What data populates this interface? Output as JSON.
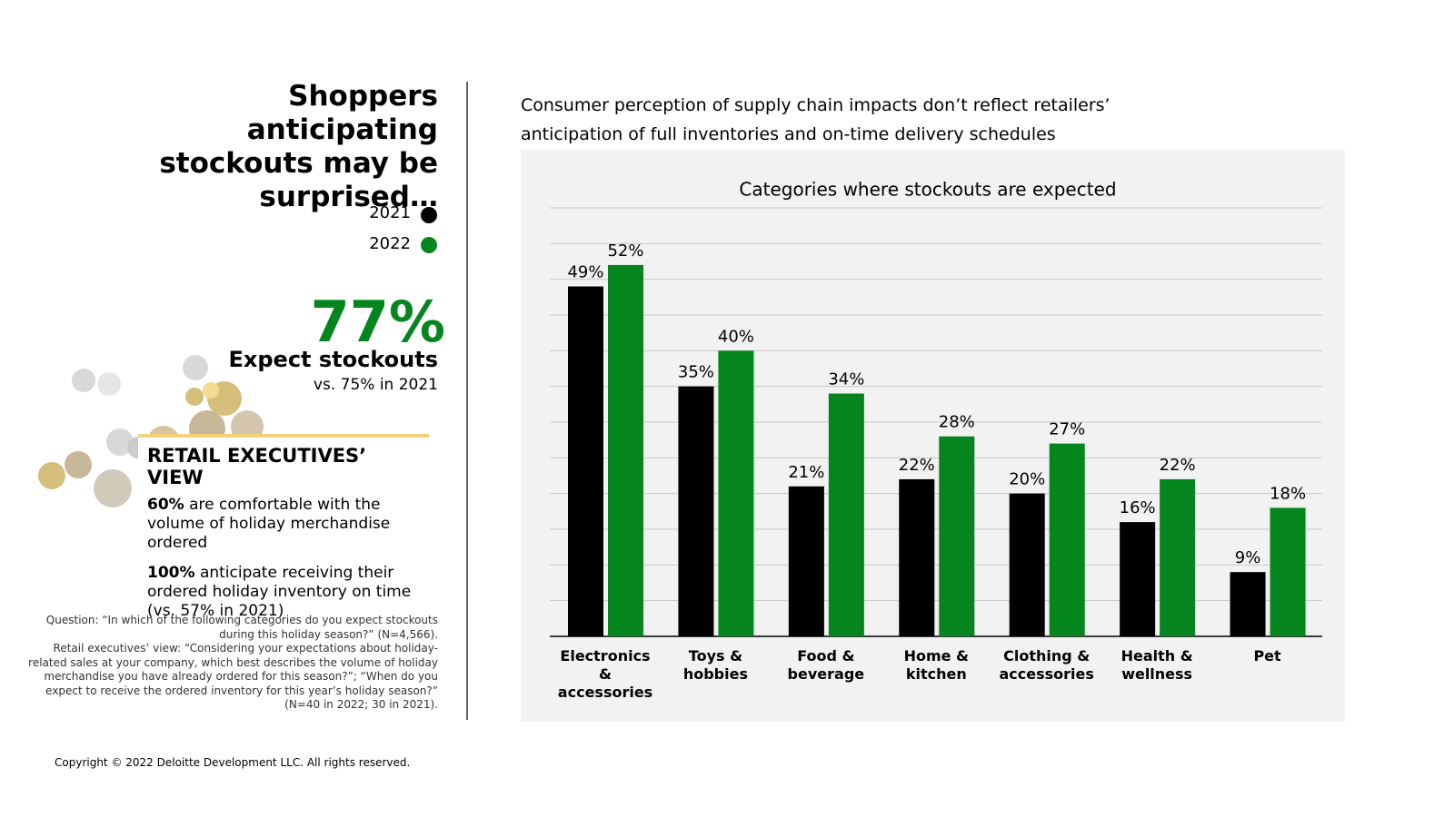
{
  "headline": "Shoppers anticipating stockouts may be surprised…",
  "stat": {
    "figure": "77%",
    "label": "Expect stockouts",
    "comparison": "vs. 75% in 2021"
  },
  "executives": {
    "title": "RETAIL EXECUTIVES’ VIEW",
    "points": [
      {
        "lead": "60%",
        "text": "are comfortable with the volume of holiday merchandise ordered"
      },
      {
        "lead": "100%",
        "text": "anticipate receiving their ordered holiday inventory on time (vs. 57% in 2021)"
      }
    ]
  },
  "notes": [
    "Question: “In which of the following categories do you expect stockouts during this holiday season?” (N=4,566).",
    "Retail executives’ view: “Considering your expectations about holiday-related sales at your company, which best describes the volume of holiday merchandise you have already ordered for this season?”; “When do you expect to receive the ordered inventory for this year’s holiday season?” (N=40 in 2022; 30 in 2021)."
  ],
  "copyright": "Copyright © 2022 Deloitte Development LLC. All rights reserved.",
  "chart_data": {
    "type": "bar",
    "subtitle": "Consumer perception of supply chain impacts don’t reflect retailers’ anticipation of full inventories and on-time delivery schedules",
    "title": "Categories where stockouts are expected",
    "categories": [
      "Electronics & accessories",
      "Toys & hobbies",
      "Food & beverage",
      "Home & kitchen",
      "Clothing & accessories",
      "Health & wellness",
      "Pet"
    ],
    "series": [
      {
        "name": "2021",
        "color": "#000000",
        "values": [
          49,
          35,
          21,
          22,
          20,
          16,
          9
        ],
        "value_labels": [
          "49%",
          "35%",
          "21%",
          "22%",
          "20%",
          "16%",
          "9%"
        ]
      },
      {
        "name": "2022",
        "color": "#04851e",
        "values": [
          52,
          40,
          34,
          28,
          27,
          22,
          18
        ],
        "value_labels": [
          "52%",
          "40%",
          "34%",
          "28%",
          "27%",
          "22%",
          "18%"
        ]
      }
    ],
    "ylim": [
      0,
      60
    ],
    "yticks": [
      0,
      5,
      10,
      15,
      20,
      25,
      30,
      35,
      40,
      45,
      50,
      55,
      60
    ],
    "grid": true
  }
}
